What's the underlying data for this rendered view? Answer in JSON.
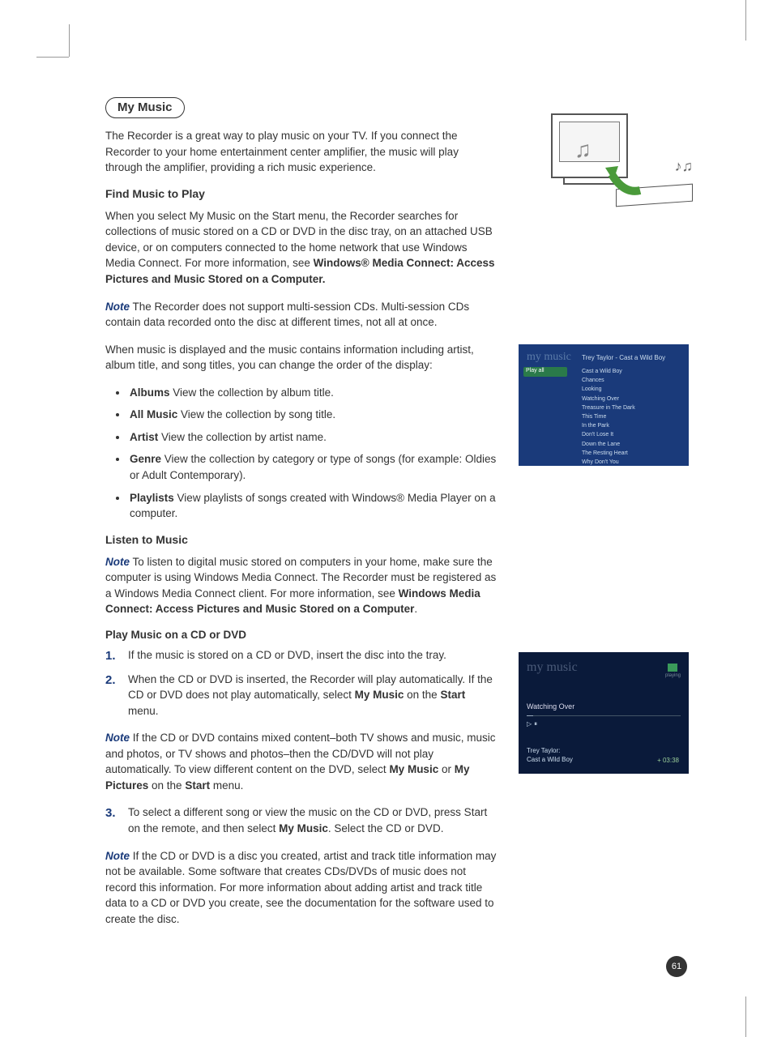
{
  "page_number": "61",
  "section_title": "My Music",
  "intro": "The Recorder is a great way to play music on your TV. If you connect the Recorder to your home entertainment center amplifier, the music will play through the amplifier, providing a rich music experience.",
  "find": {
    "heading": "Find Music to Play",
    "p1a": "When you select My Music on the Start menu, the Recorder searches for collections of music stored on a CD or DVD in the disc tray, on an attached USB device, or on computers connected to the home network that use Windows Media Connect. For more information, see ",
    "p1b": "Windows® Media Connect: Access Pictures and Music Stored on a Computer.",
    "note1_label": "Note",
    "note1": "   The Recorder does not support multi-session CDs. Multi-session CDs contain data recorded onto the disc at different times, not all at once.",
    "p2": "When music is displayed and the music contains information including artist, album title, and song titles, you can change the order of the display:",
    "views": [
      {
        "label": "Albums",
        "desc": "   View the collection by album title."
      },
      {
        "label": "All Music",
        "desc": "   View the collection by song title."
      },
      {
        "label": "Artist",
        "desc": "   View the collection by artist name."
      },
      {
        "label": "Genre",
        "desc": "   View the collection by category or type of songs (for example: Oldies or Adult Contemporary)."
      },
      {
        "label": "Playlists",
        "desc": "   View playlists of songs created with Windows® Media Player on a computer."
      }
    ]
  },
  "listen": {
    "heading": "Listen to Music",
    "note2_label": "Note",
    "note2a": "   To listen to digital music stored on computers in your home, make sure the computer is using Windows Media Connect. The Recorder must be registered as a Windows Media Connect client. For more information, see ",
    "note2b": "Windows Media Connect: Access Pictures and Music Stored on a Computer",
    "note2c": ".",
    "sub": "Play Music on a CD or DVD",
    "step1": "If the music is stored on a CD or DVD, insert the disc into the tray.",
    "step2a": "When the CD or DVD is inserted, the Recorder will play automatically. If the CD or DVD does not play automatically, select ",
    "step2b": "My Music",
    "step2c": " on the ",
    "step2d": "Start",
    "step2e": " menu.",
    "note3_label": "Note",
    "note3a": "   If the CD or DVD contains mixed content–both TV shows and music, music and photos, or TV shows and photos–then the CD/DVD will not play automatically. To view different content on the DVD, select ",
    "note3b": "My Music",
    "note3c": " or ",
    "note3d": "My Pictures",
    "note3e": " on the ",
    "note3f": "Start",
    "note3g": " menu.",
    "step3a": "To select a different song or view the music on the CD or DVD, press Start on the remote, and then select ",
    "step3b": "My Music",
    "step3c": ". Select the CD or DVD.",
    "note4_label": "Note",
    "note4": "   If the CD or DVD is a disc you created, artist and track title information may not be available. Some software that creates CDs/DVDs of music does not record this information. For more information about adding artist and track title data to a CD or DVD you create, see the documentation for the software used to create the disc."
  },
  "shot1": {
    "bg": "#1a3a7a",
    "title": "my music",
    "album": "Trey Taylor - Cast a Wild Boy",
    "playall": "Play all",
    "tracks": [
      "Cast a Wild Boy",
      "Chances",
      "Looking",
      "Watching Over",
      "Treasure in The Dark",
      "This Time",
      "In the Park",
      "Don't Lose It",
      "Down the Lane",
      "The Resting Heart",
      "Why Don't You"
    ]
  },
  "shot2": {
    "bg": "#0a1a3a",
    "title": "my music",
    "chiplbl": "playing",
    "track": "Watching Over",
    "ctrl": "▷⏸",
    "artist_l1": "Trey Taylor:",
    "artist_l2": "Cast a Wild Boy",
    "time": "+ 03:38"
  },
  "colors": {
    "accent": "#1a3a7a",
    "green": "#3a9a5a",
    "text": "#333333"
  }
}
